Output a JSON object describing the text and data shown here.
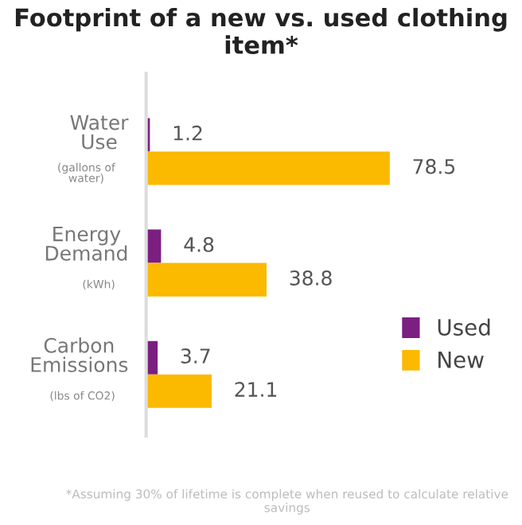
{
  "chart_data": {
    "type": "bar",
    "orientation": "horizontal",
    "title": "Footprint of a new vs. used clothing item*",
    "categories": [
      "Water Use (gallons of water)",
      "Energy Demand (kWh)",
      "Carbon Emissions (lbs of CO2)"
    ],
    "series": [
      {
        "name": "Used",
        "color": "#7b1f80",
        "values": [
          1.2,
          4.8,
          3.7
        ]
      },
      {
        "name": "New",
        "color": "#fbb900",
        "values": [
          78.5,
          38.8,
          21.1
        ]
      }
    ],
    "data_labels": true,
    "legend": "bottom right",
    "annotations": [
      "*Assuming 30% of lifetime is complete when reused to calculate relative savings"
    ]
  }
}
